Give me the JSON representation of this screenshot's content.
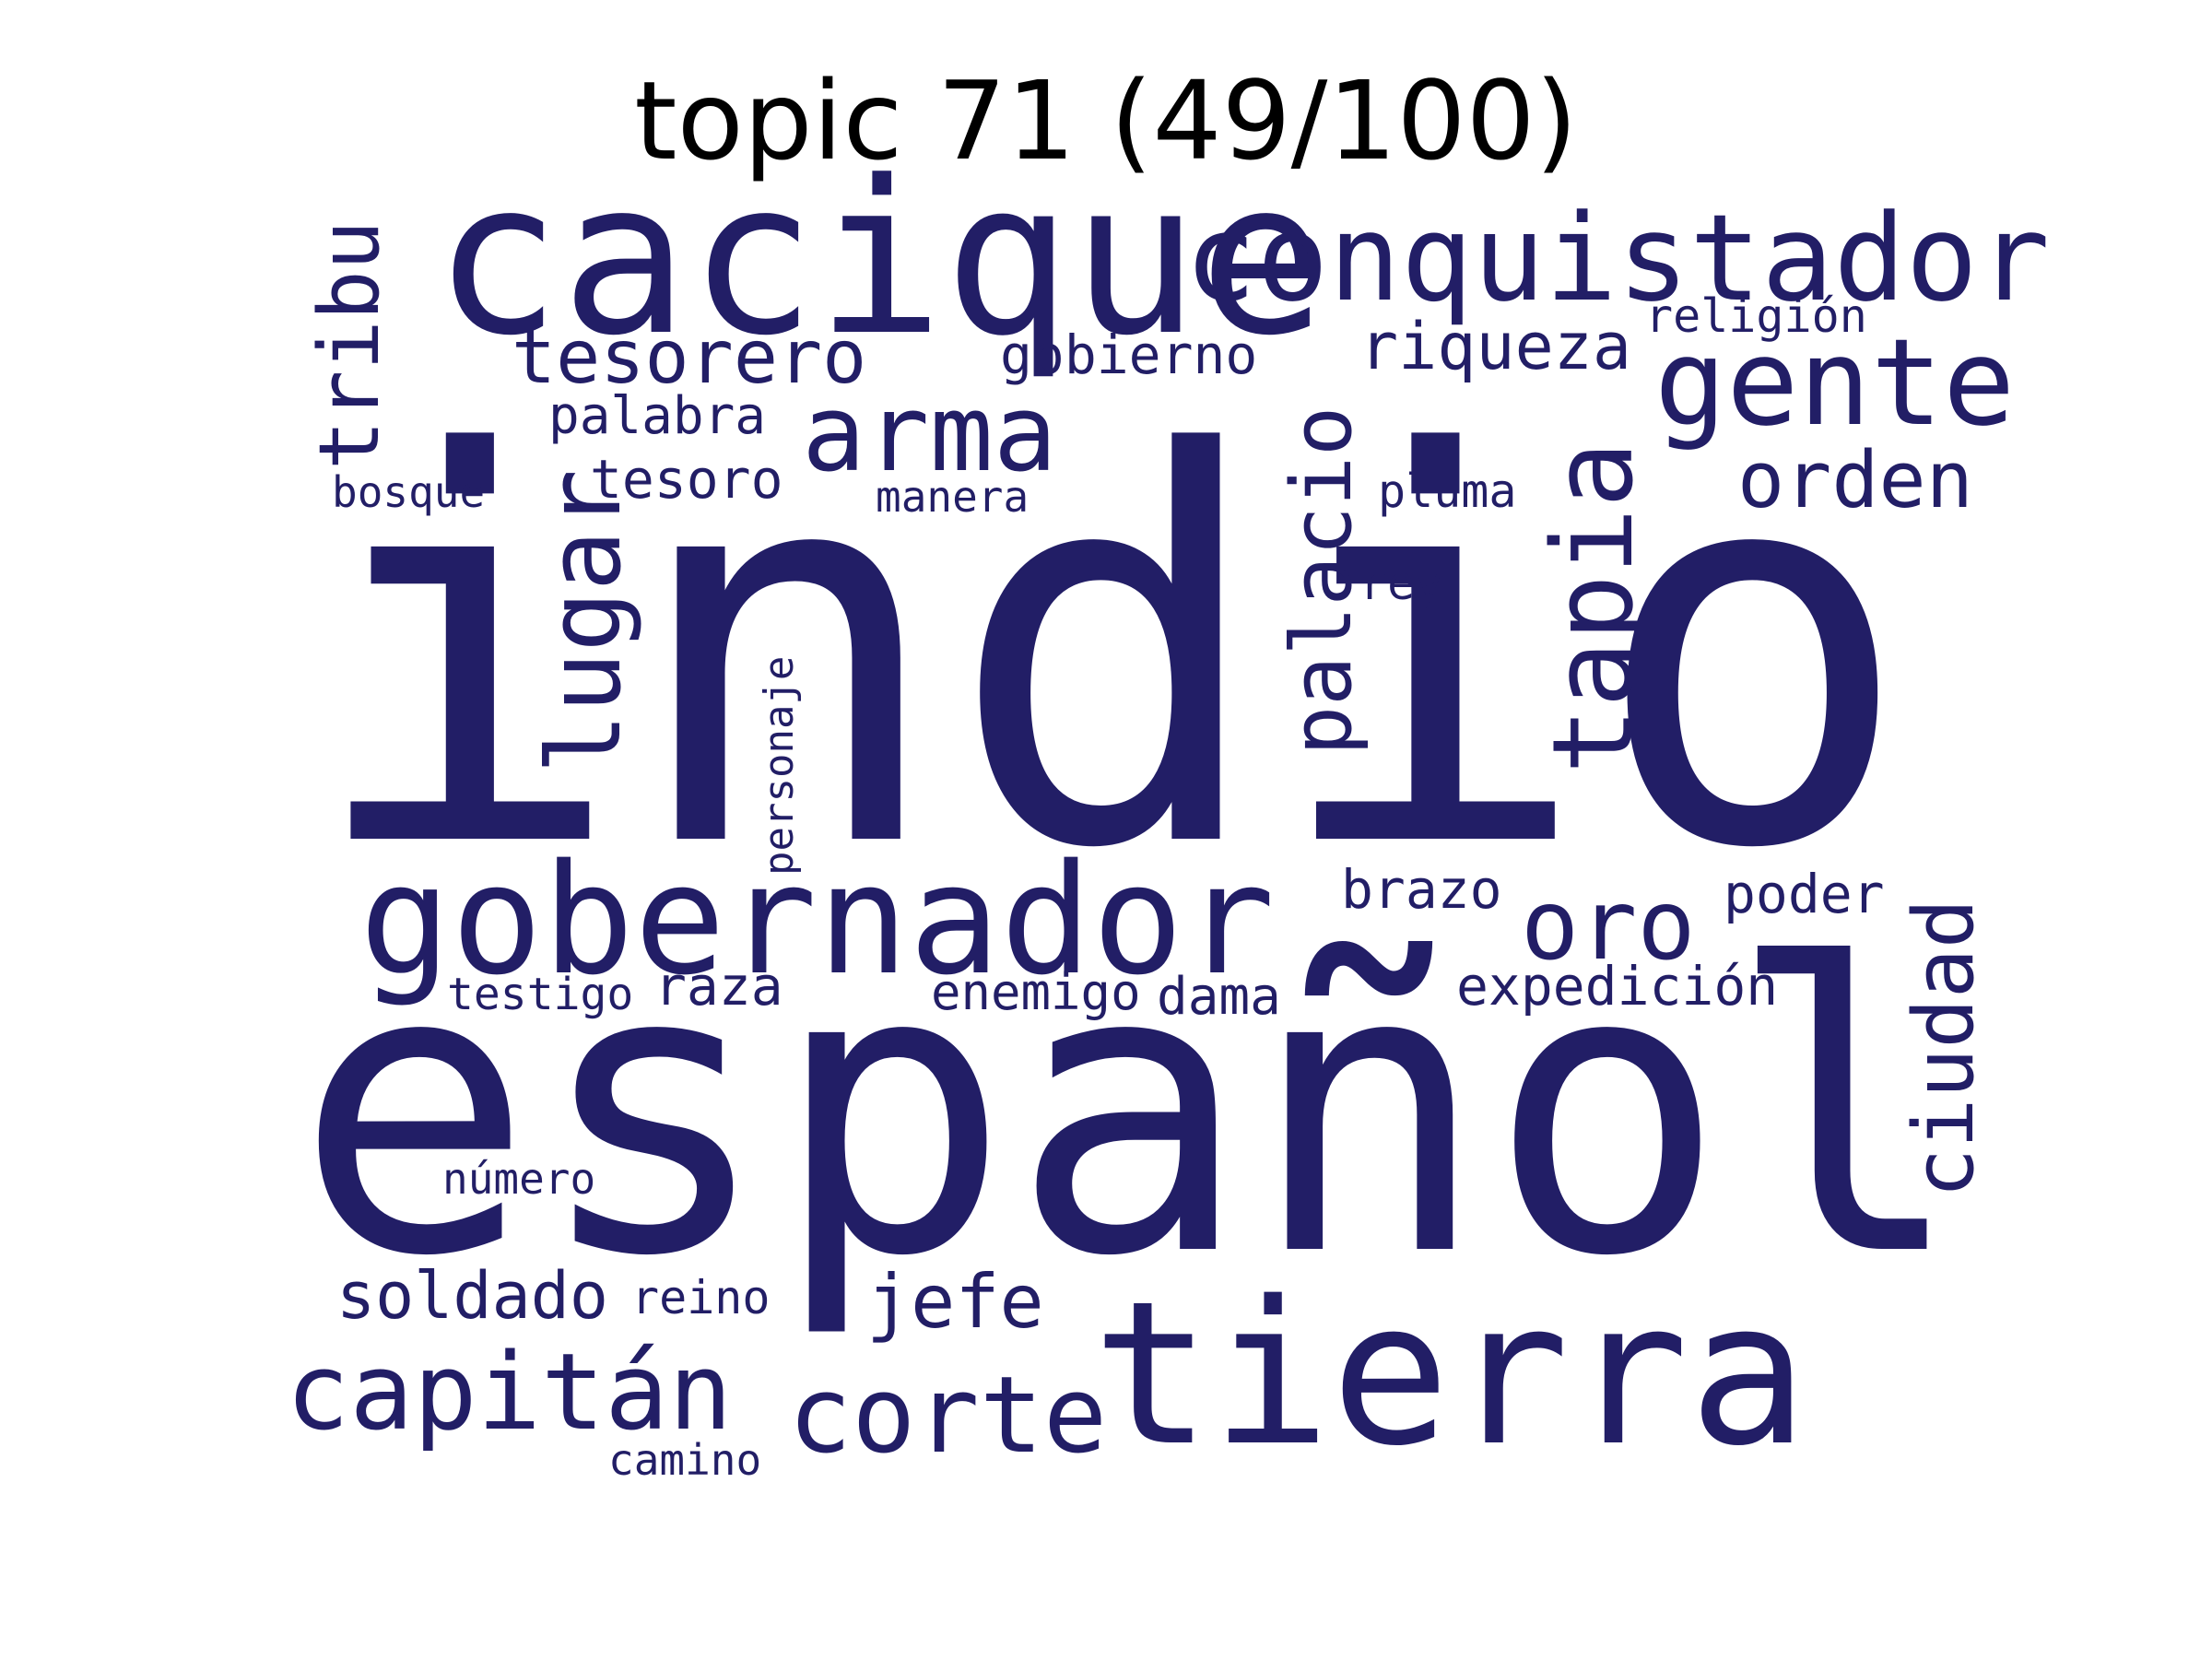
{
  "title": "topic 71 (49/100)",
  "colors": {
    "word": "#221e66",
    "title": "#000000",
    "background": "#ffffff"
  },
  "words": [
    {
      "text": "indio",
      "id": "indio",
      "vertical": false
    },
    {
      "text": "español",
      "id": "espanol",
      "vertical": false
    },
    {
      "text": "cacique",
      "id": "cacique",
      "vertical": false
    },
    {
      "text": "tierra",
      "id": "tierra",
      "vertical": false
    },
    {
      "text": "conquistador",
      "id": "conquistador",
      "vertical": false
    },
    {
      "text": "gobernador",
      "id": "gobernador",
      "vertical": false
    },
    {
      "text": "gente",
      "id": "gente",
      "vertical": false
    },
    {
      "text": "arma",
      "id": "arma",
      "vertical": false
    },
    {
      "text": "tapia",
      "id": "tapia",
      "vertical": true
    },
    {
      "text": "lugar",
      "id": "lugar",
      "vertical": true
    },
    {
      "text": "capitán",
      "id": "capitan",
      "vertical": false
    },
    {
      "text": "corte",
      "id": "corte",
      "vertical": false
    },
    {
      "text": "oro",
      "id": "oro",
      "vertical": false
    },
    {
      "text": "palacio",
      "id": "palacio",
      "vertical": true
    },
    {
      "text": "tribu",
      "id": "tribu",
      "vertical": true
    },
    {
      "text": "ciudad",
      "id": "ciudad",
      "vertical": true
    },
    {
      "text": "orden",
      "id": "orden",
      "vertical": false
    },
    {
      "text": "tesorero",
      "id": "tesorero",
      "vertical": false
    },
    {
      "text": "jefe",
      "id": "jefe",
      "vertical": false
    },
    {
      "text": "riqueza",
      "id": "riqueza",
      "vertical": false
    },
    {
      "text": "soldado",
      "id": "soldado",
      "vertical": false
    },
    {
      "text": "gobierno",
      "id": "gobierno",
      "vertical": false
    },
    {
      "text": "tesoro",
      "id": "tesoro",
      "vertical": false
    },
    {
      "text": "expedición",
      "id": "expedicion",
      "vertical": false
    },
    {
      "text": "palabra",
      "id": "palabra",
      "vertical": false
    },
    {
      "text": "brazo",
      "id": "brazo",
      "vertical": false
    },
    {
      "text": "poder",
      "id": "poder",
      "vertical": false
    },
    {
      "text": "raza",
      "id": "raza",
      "vertical": false
    },
    {
      "text": "enemigo",
      "id": "enemigo",
      "vertical": false
    },
    {
      "text": "dama",
      "id": "dama",
      "vertical": false
    },
    {
      "text": "personaje",
      "id": "personaje",
      "vertical": true
    },
    {
      "text": "religión",
      "id": "religion",
      "vertical": false
    },
    {
      "text": "reino",
      "id": "reino",
      "vertical": false
    },
    {
      "text": "pluma",
      "id": "pluma",
      "vertical": false
    },
    {
      "text": "bosque",
      "id": "bosque",
      "vertical": false
    },
    {
      "text": "manera",
      "id": "manera",
      "vertical": false
    },
    {
      "text": "testigo",
      "id": "testigo",
      "vertical": false
    },
    {
      "text": "rey",
      "id": "rey",
      "vertical": false
    },
    {
      "text": "número",
      "id": "numero",
      "vertical": false
    },
    {
      "text": "camino",
      "id": "camino",
      "vertical": false
    }
  ]
}
